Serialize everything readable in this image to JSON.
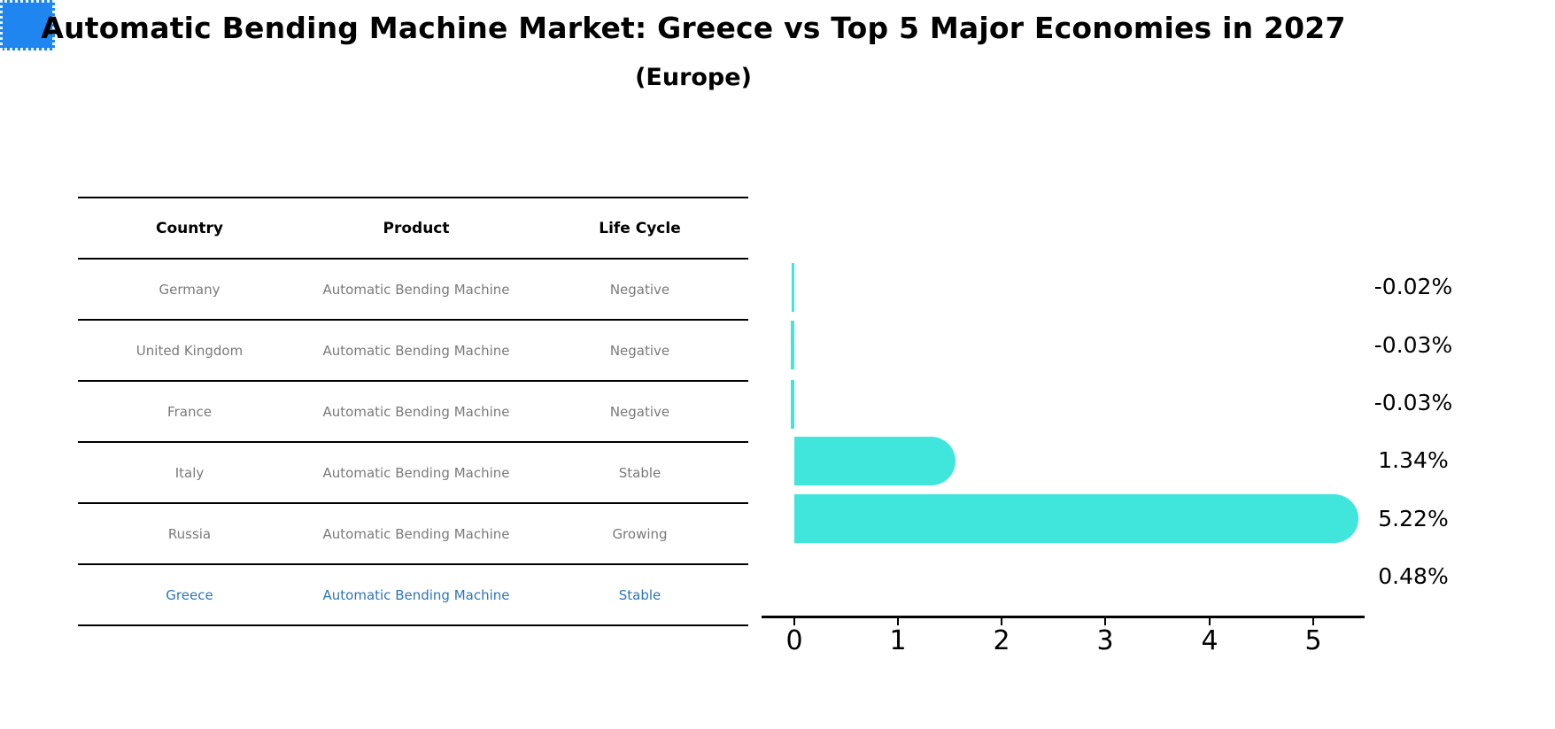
{
  "title": "Automatic Bending Machine Market: Greece vs Top 5 Major Economies in 2027",
  "subtitle": "(Europe)",
  "colors": {
    "bar_default": "#40e5dc",
    "bar_highlight": "#1e86ee",
    "highlight_text": "#2e75b6",
    "table_text": "#7a7a7a",
    "axis": "#000000"
  },
  "table": {
    "headers": [
      "Country",
      "Product",
      "Life Cycle"
    ],
    "rows": [
      {
        "country": "Germany",
        "product": "Automatic Bending Machine",
        "life_cycle": "Negative"
      },
      {
        "country": "United Kingdom",
        "product": "Automatic Bending Machine",
        "life_cycle": "Negative"
      },
      {
        "country": "France",
        "product": "Automatic Bending Machine",
        "life_cycle": "Negative"
      },
      {
        "country": "Italy",
        "product": "Automatic Bending Machine",
        "life_cycle": "Stable"
      },
      {
        "country": "Russia",
        "product": "Automatic Bending Machine",
        "life_cycle": "Growing"
      },
      {
        "country": "Greece",
        "product": "Automatic Bending Machine",
        "life_cycle": "Stable"
      }
    ],
    "highlight_row": "Greece"
  },
  "chart_data": {
    "type": "bar",
    "orientation": "horizontal",
    "categories": [
      "Germany",
      "United Kingdom",
      "France",
      "Italy",
      "Russia",
      "Greece"
    ],
    "values": [
      -0.02,
      -0.03,
      -0.03,
      1.34,
      5.22,
      0.48
    ],
    "value_labels": [
      "-0.02%",
      "-0.03%",
      "-0.03%",
      "1.34%",
      "5.22%",
      "0.48%"
    ],
    "unit": "%",
    "xlabel": "",
    "ylabel": "",
    "xlim": [
      -0.3,
      5.5
    ],
    "xticks": [
      "0",
      "1",
      "2",
      "3",
      "4",
      "5"
    ],
    "grid": false,
    "legend": false,
    "bar_colors": [
      "#40e5dc",
      "#40e5dc",
      "#40e5dc",
      "#40e5dc",
      "#40e5dc",
      "#1e86ee"
    ],
    "highlight_category": "Greece"
  }
}
